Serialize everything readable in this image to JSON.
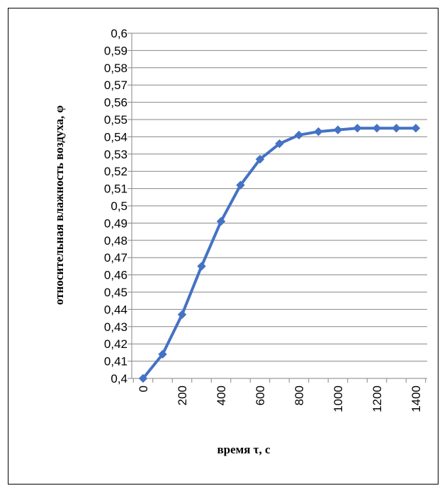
{
  "chart_data": {
    "type": "line",
    "title": "",
    "xlabel": "время τ, с",
    "ylabel": "относительная влажность воздуха, φ",
    "x_ticks": [
      "0",
      "200",
      "400",
      "600",
      "800",
      "1000",
      "1200",
      "1400"
    ],
    "y_ticks": [
      "0,4",
      "0,41",
      "0,42",
      "0,43",
      "0,44",
      "0,45",
      "0,46",
      "0,47",
      "0,48",
      "0,49",
      "0,5",
      "0,51",
      "0,52",
      "0,53",
      "0,54",
      "0,55",
      "0,56",
      "0,57",
      "0,58",
      "0,59",
      "0,6"
    ],
    "xlim": [
      0,
      1400
    ],
    "ylim": [
      0.4,
      0.6
    ],
    "grid": true,
    "series": [
      {
        "color": "#4472C4",
        "x": [
          0,
          100,
          200,
          300,
          400,
          500,
          600,
          700,
          800,
          900,
          1000,
          1100,
          1200,
          1300,
          1400
        ],
        "y": [
          0.4,
          0.414,
          0.437,
          0.465,
          0.491,
          0.512,
          0.527,
          0.536,
          0.541,
          0.543,
          0.544,
          0.545,
          0.545,
          0.545,
          0.545
        ]
      }
    ]
  }
}
